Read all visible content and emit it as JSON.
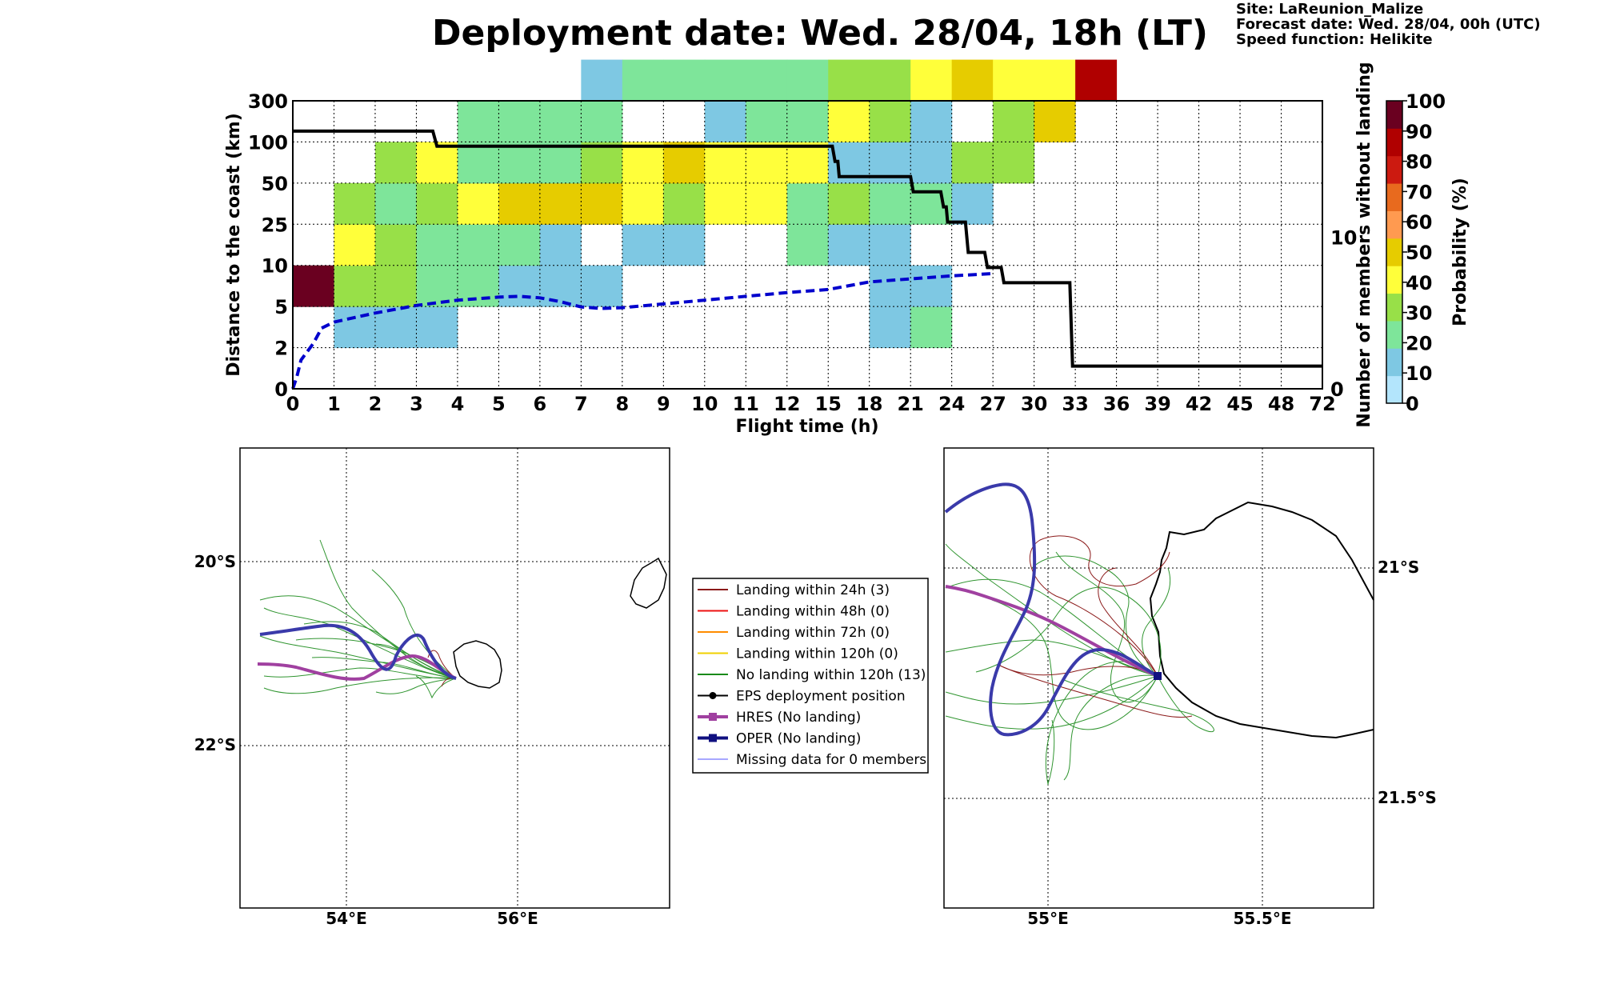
{
  "title": "Deployment date: Wed. 28/04, 18h (LT)",
  "info": {
    "site": "Site: LaReunion_Malize",
    "forecast": "Forecast date: Wed. 28/04, 00h (UTC)",
    "speed": "Speed function: Helikite"
  },
  "chart_data": [
    {
      "type": "heatmap",
      "xlabel": "Flight time (h)",
      "ylabel": "Distance to the coast (km)",
      "y2label": "Number of members without landing",
      "x_ticks": [
        "0",
        "1",
        "2",
        "3",
        "4",
        "5",
        "6",
        "7",
        "8",
        "9",
        "10",
        "11",
        "12",
        "15",
        "18",
        "21",
        "24",
        "27",
        "30",
        "33",
        "36",
        "39",
        "42",
        "45",
        "48",
        "72"
      ],
      "y_ticks": [
        "0",
        "2",
        "5",
        "10",
        "25",
        "50",
        "100",
        "300"
      ],
      "y2_ticks": [
        "0",
        "10"
      ],
      "y2lim": [
        0,
        19
      ],
      "colorbar": {
        "label": "Probability (%)",
        "ticks": [
          "0",
          "10",
          "20",
          "30",
          "40",
          "50",
          "60",
          "70",
          "80",
          "90",
          "100"
        ],
        "colors": [
          "#b3e5fc",
          "#7ec8e3",
          "#7ee59a",
          "#98e048",
          "#ffff3a",
          "#e6cc00",
          "#ff9a50",
          "#e86a1e",
          "#cc1a10",
          "#b00000",
          "#6a0020"
        ]
      },
      "cells": [
        [
          0,
          0,
          0,
          0,
          0,
          0,
          0,
          0,
          0,
          0,
          0,
          0,
          0,
          0,
          0,
          0,
          0,
          0,
          0,
          0,
          0,
          0,
          0,
          0,
          0
        ],
        [
          0,
          1,
          1,
          1,
          0,
          0,
          0,
          0,
          0,
          0,
          0,
          0,
          0,
          0,
          1,
          2,
          0,
          0,
          0,
          0,
          0,
          0,
          0,
          0,
          0
        ],
        [
          10,
          3,
          3,
          2,
          2,
          1,
          1,
          1,
          0,
          0,
          0,
          0,
          0,
          0,
          1,
          1,
          0,
          0,
          0,
          0,
          0,
          0,
          0,
          0,
          0
        ],
        [
          0,
          4,
          3,
          2,
          2,
          2,
          1,
          0,
          1,
          1,
          0,
          0,
          2,
          1,
          1,
          0,
          0,
          0,
          0,
          0,
          0,
          0,
          0,
          0,
          0
        ],
        [
          0,
          3,
          2,
          3,
          4,
          5,
          5,
          5,
          4,
          3,
          4,
          4,
          2,
          3,
          2,
          2,
          1,
          0,
          0,
          0,
          0,
          0,
          0,
          0,
          0
        ],
        [
          0,
          0,
          3,
          4,
          2,
          2,
          2,
          3,
          4,
          5,
          4,
          4,
          4,
          1,
          1,
          1,
          3,
          3,
          0,
          0,
          0,
          0,
          0,
          0,
          0
        ],
        [
          0,
          0,
          0,
          0,
          2,
          2,
          2,
          2,
          0,
          0,
          1,
          2,
          2,
          4,
          3,
          1,
          0,
          3,
          5,
          0,
          0,
          0,
          0,
          0,
          0
        ],
        [
          0,
          0,
          0,
          0,
          0,
          0,
          0,
          1,
          2,
          2,
          2,
          2,
          2,
          3,
          3,
          4,
          5,
          4,
          4,
          9,
          0,
          0,
          0,
          0,
          0
        ]
      ],
      "series": [
        {
          "name": "",
          "style": "solid",
          "color": "#000000",
          "points": [
            [
              0,
              17
            ],
            [
              3.4,
              17
            ],
            [
              3.5,
              16
            ],
            [
              15.3,
              16
            ],
            [
              15.5,
              15
            ],
            [
              15.7,
              15
            ],
            [
              15.8,
              14
            ],
            [
              21,
              14
            ],
            [
              21.2,
              13
            ],
            [
              23.2,
              13
            ],
            [
              23.4,
              12
            ],
            [
              23.6,
              12
            ],
            [
              23.7,
              11
            ],
            [
              25,
              11
            ],
            [
              25.2,
              9
            ],
            [
              26.4,
              9
            ],
            [
              26.6,
              8
            ],
            [
              27.6,
              8
            ],
            [
              27.8,
              7
            ],
            [
              32.6,
              7
            ],
            [
              32.8,
              1.5
            ],
            [
              72,
              1.5
            ]
          ]
        },
        {
          "name": "",
          "style": "dashed",
          "color": "#0000cc",
          "points": [
            [
              0,
              0
            ],
            [
              0.1,
              0.8
            ],
            [
              0.2,
              1.9
            ],
            [
              0.5,
              3
            ],
            [
              0.7,
              4
            ],
            [
              1,
              4.4
            ],
            [
              1.5,
              4.7
            ],
            [
              2,
              5.0
            ],
            [
              3,
              5.5
            ],
            [
              4,
              5.85
            ],
            [
              5,
              6.05
            ],
            [
              5.5,
              6.1
            ],
            [
              6,
              6.0
            ],
            [
              6.5,
              5.75
            ],
            [
              7,
              5.4
            ],
            [
              7.5,
              5.3
            ],
            [
              8,
              5.35
            ],
            [
              9,
              5.6
            ],
            [
              10,
              5.85
            ],
            [
              11,
              6.1
            ],
            [
              12,
              6.35
            ],
            [
              15,
              6.55
            ],
            [
              18,
              7.05
            ],
            [
              21,
              7.25
            ],
            [
              24,
              7.45
            ],
            [
              27,
              7.6
            ]
          ]
        }
      ]
    },
    {
      "type": "map",
      "title": "",
      "lon_ticks": [
        "54°E",
        "56°E"
      ],
      "lat_ticks": [
        "20°S",
        "22°S"
      ]
    },
    {
      "type": "map",
      "title": "",
      "lon_ticks": [
        "55°E",
        "55.5°E"
      ],
      "lat_ticks": [
        "21°S",
        "21.5°S"
      ]
    }
  ],
  "legend": [
    {
      "label": "Landing within 24h (3)",
      "color": "#8b1a1a",
      "marker": "none",
      "width": 2
    },
    {
      "label": "Landing within 48h (0)",
      "color": "#ee1111",
      "marker": "none",
      "width": 2
    },
    {
      "label": "Landing within 72h (0)",
      "color": "#ff8c00",
      "marker": "none",
      "width": 2
    },
    {
      "label": "Landing within 120h (0)",
      "color": "#f0d000",
      "marker": "none",
      "width": 2
    },
    {
      "label": "No landing within 120h (13)",
      "color": "#1a8a1a",
      "marker": "none",
      "width": 2
    },
    {
      "label": "EPS deployment position",
      "color": "#000000",
      "marker": "circle",
      "width": 2
    },
    {
      "label": "HRES (No landing)",
      "color": "#a040a0",
      "marker": "square",
      "width": 4
    },
    {
      "label": "OPER (No landing)",
      "color": "#101080",
      "marker": "square",
      "width": 4
    },
    {
      "label": "Missing data for 0 members",
      "color": "#5050ff",
      "marker": "none",
      "width": 1
    }
  ]
}
